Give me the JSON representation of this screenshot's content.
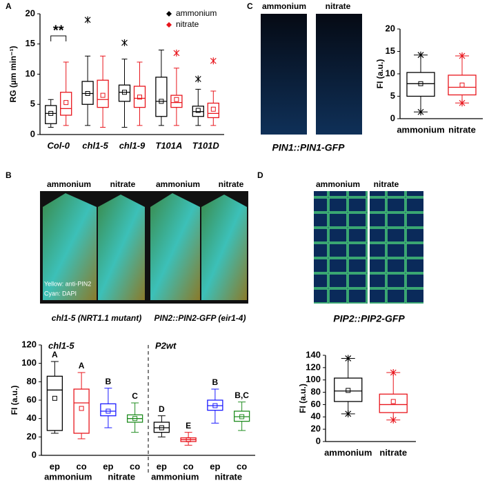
{
  "panels": {
    "letters": [
      "A",
      "B",
      "C",
      "D"
    ],
    "c_images": [
      "ammonium",
      "nitrate"
    ],
    "c_caption": "PIN1::PIN1-GFP",
    "b_images": [
      "ammonium",
      "nitrate",
      "ammonium",
      "nitrate"
    ],
    "b_stain": [
      "Yellow: anti-PIN2",
      "Cyan: DAPI"
    ],
    "b_captions": [
      "chl1-5 (NRT1.1 mutant)",
      "PIN2::PIN2-GFP (eir1-4)"
    ],
    "d_images": [
      "ammonium",
      "nitrate"
    ],
    "d_caption": "PIP2::PIP2-GFP"
  },
  "chart_data": [
    {
      "type": "box",
      "ylabel": "RG (µm min⁻¹)",
      "annotation": "**",
      "categories": [
        "Col-0",
        "chl1-5",
        "chl1-9",
        "T101A",
        "T101D"
      ],
      "series": [
        {
          "name": "ammonium",
          "color": "#000000",
          "min": [
            1.2,
            1.5,
            1.2,
            1.5,
            1.5
          ],
          "q1": [
            1.8,
            5,
            5.5,
            3,
            3
          ],
          "median": [
            3.5,
            6.8,
            7,
            5.5,
            3.8
          ],
          "q3": [
            4.8,
            8.8,
            8.2,
            9.5,
            4.7
          ],
          "max": [
            5.8,
            13,
            12.5,
            14,
            7.5
          ],
          "mean": [
            3.5,
            6.8,
            7,
            5.5,
            4
          ],
          "outliers": [
            null,
            19,
            15.2,
            null,
            9.2
          ]
        },
        {
          "name": "nitrate",
          "color": "#e8141b",
          "min": [
            1.5,
            1.2,
            1.5,
            1.5,
            1.5
          ],
          "q1": [
            3.2,
            4.5,
            4.5,
            4.5,
            2.8
          ],
          "median": [
            4.3,
            5.8,
            6,
            5.3,
            3.5
          ],
          "q3": [
            7,
            9,
            8,
            6.5,
            5.2
          ],
          "max": [
            12,
            13,
            12,
            11,
            7.2
          ],
          "mean": [
            5.3,
            6.5,
            6.2,
            5.8,
            4.2
          ],
          "outliers": [
            null,
            null,
            null,
            13.5,
            12.2
          ]
        }
      ],
      "ylim": [
        0,
        20
      ],
      "yticks": [
        0,
        5,
        10,
        15,
        20
      ]
    },
    {
      "type": "box",
      "ylabel": "FI (a.u.)",
      "boxes": [
        {
          "label": "ammonium",
          "color": "#000000",
          "min": 1.5,
          "q1": 5,
          "median": 7.8,
          "q3": 10.3,
          "max": 14.2,
          "mean": 7.8
        },
        {
          "label": "nitrate",
          "color": "#e8141b",
          "min": 3.5,
          "q1": 5.3,
          "median": 7,
          "q3": 9.7,
          "max": 14,
          "mean": 7.5
        }
      ],
      "ylim": [
        0,
        20
      ],
      "yticks": [
        0,
        5,
        10,
        15,
        20
      ]
    },
    {
      "type": "box",
      "ylabel": "FI (a.u.)",
      "sections": [
        "chl1-5",
        "P2wt"
      ],
      "groups": [
        "ammonium",
        "nitrate",
        "ammonium",
        "nitrate"
      ],
      "boxes": [
        {
          "label": "ep",
          "color": "#000000",
          "min": 24,
          "q1": 27,
          "median": 71,
          "q3": 86,
          "max": 102,
          "mean": 62,
          "letter": "A"
        },
        {
          "label": "co",
          "color": "#e8141b",
          "min": 18,
          "q1": 24,
          "median": 57,
          "q3": 72,
          "max": 90,
          "mean": 51,
          "letter": "A"
        },
        {
          "label": "ep",
          "color": "#1a1aff",
          "min": 30,
          "q1": 43,
          "median": 48,
          "q3": 56,
          "max": 73,
          "mean": 48,
          "letter": "B"
        },
        {
          "label": "co",
          "color": "#1e8c1e",
          "min": 25,
          "q1": 36,
          "median": 40,
          "q3": 44,
          "max": 57,
          "mean": 40,
          "letter": "C"
        },
        {
          "label": "ep",
          "color": "#000000",
          "min": 20,
          "q1": 25,
          "median": 30,
          "q3": 36,
          "max": 43,
          "mean": 30,
          "letter": "D"
        },
        {
          "label": "co",
          "color": "#e8141b",
          "min": 11,
          "q1": 15,
          "median": 17,
          "q3": 19,
          "max": 25,
          "mean": 17,
          "letter": "E"
        },
        {
          "label": "ep",
          "color": "#1a1aff",
          "min": 35,
          "q1": 49,
          "median": 54,
          "q3": 60,
          "max": 72,
          "mean": 54,
          "letter": "B"
        },
        {
          "label": "co",
          "color": "#1e8c1e",
          "min": 27,
          "q1": 37,
          "median": 42,
          "q3": 48,
          "max": 58,
          "mean": 42,
          "letter": "B,C"
        }
      ],
      "ylim": [
        0,
        120
      ],
      "yticks": [
        0,
        20,
        40,
        60,
        80,
        100,
        120
      ]
    },
    {
      "type": "box",
      "ylabel": "FI (a.u.)",
      "boxes": [
        {
          "label": "ammonium",
          "color": "#000000",
          "min": 45,
          "q1": 65,
          "median": 82,
          "q3": 103,
          "max": 135,
          "mean": 83
        },
        {
          "label": "nitrate",
          "color": "#e8141b",
          "min": 35,
          "q1": 47,
          "median": 60,
          "q3": 77,
          "max": 112,
          "mean": 65
        }
      ],
      "ylim": [
        0,
        140
      ],
      "yticks": [
        0,
        20,
        40,
        60,
        80,
        100,
        120,
        140
      ]
    }
  ]
}
